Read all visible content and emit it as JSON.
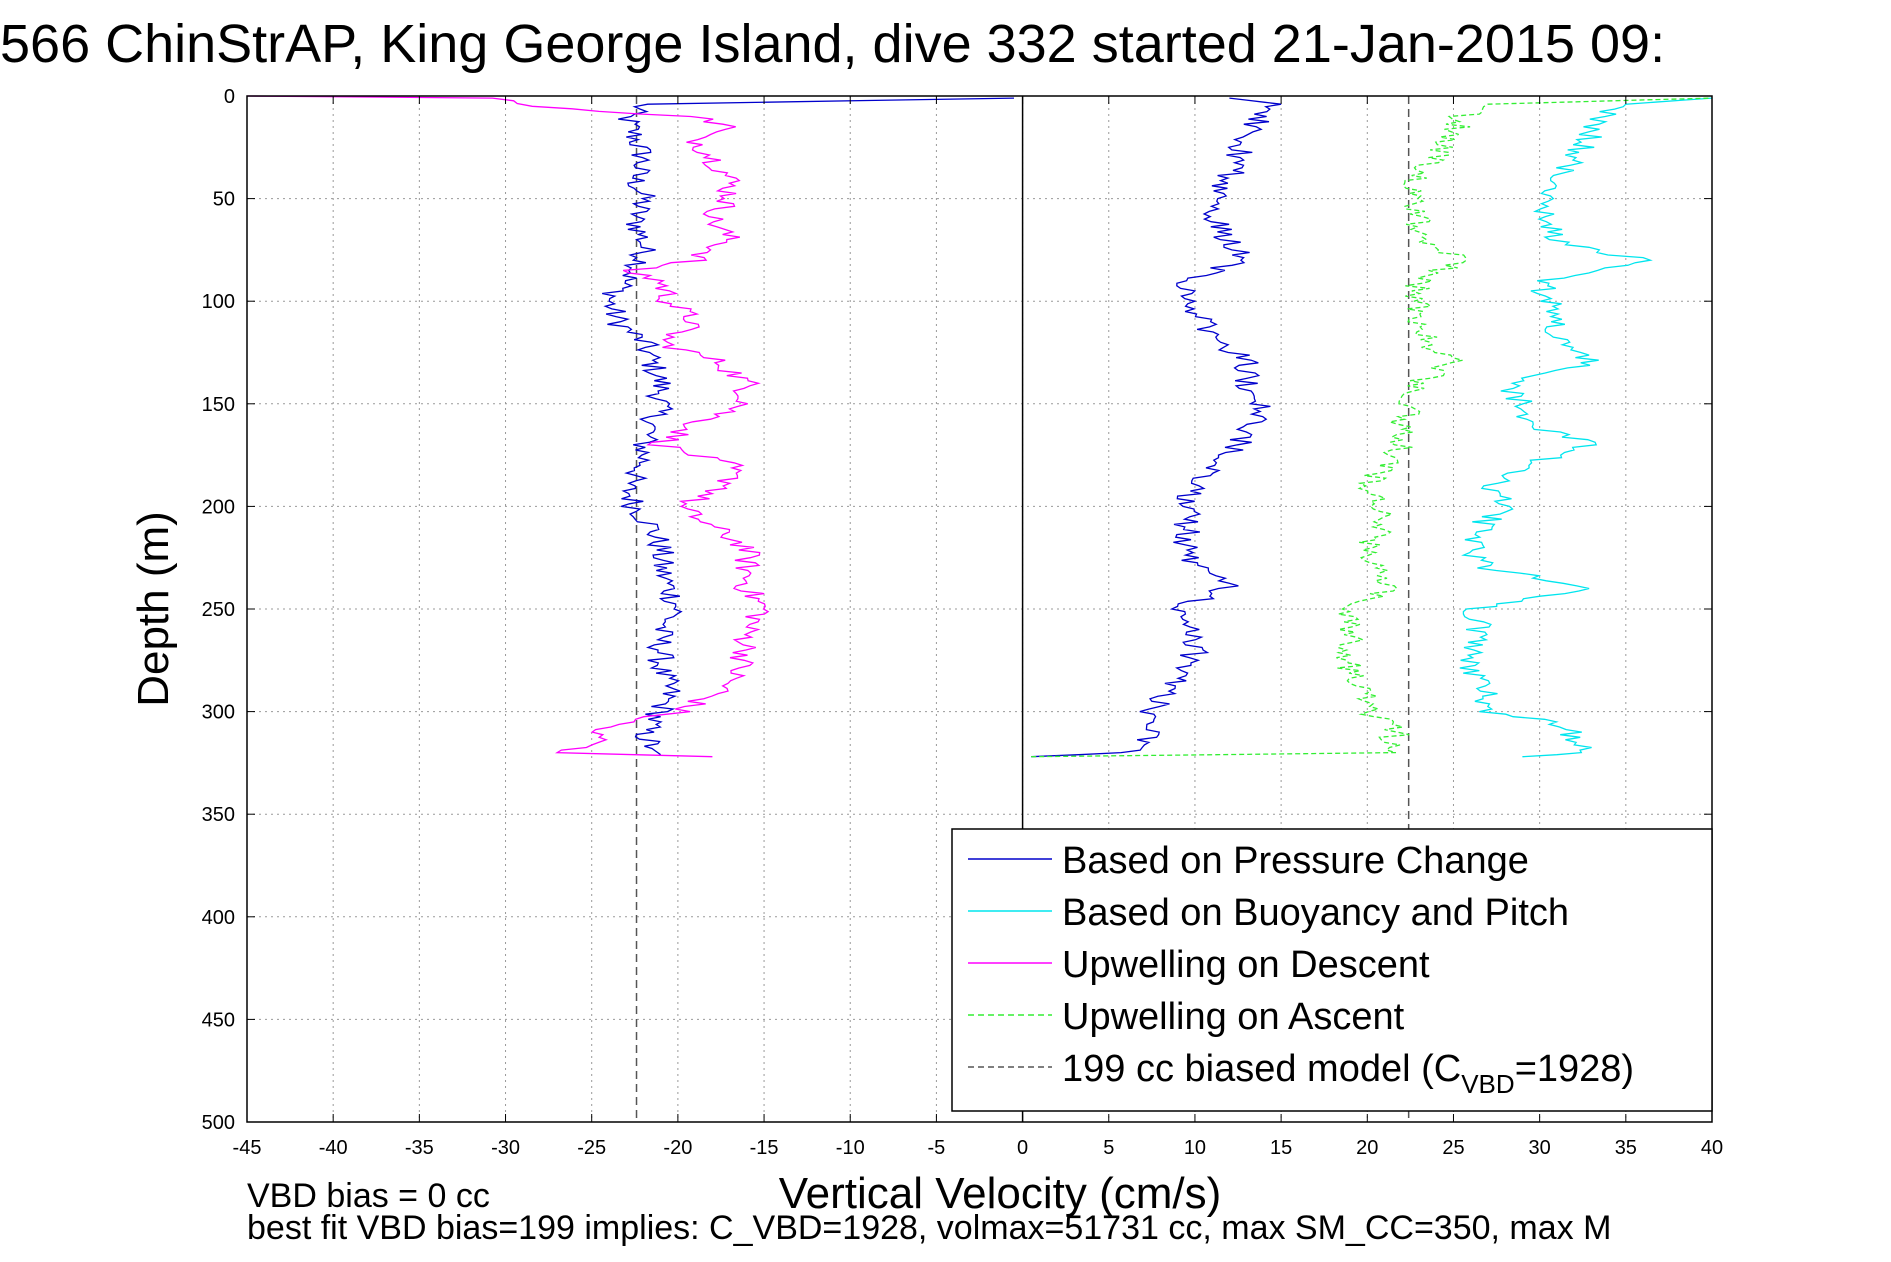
{
  "chart_data": {
    "type": "line",
    "title": "566 ChinStrAP, King George Island, dive 332 started 21-Jan-2015 09:",
    "xlabel": "Vertical Velocity (cm/s)",
    "ylabel": "Depth (m)",
    "xlim": [
      -45,
      40
    ],
    "ylim": [
      0,
      500
    ],
    "y_reversed": true,
    "grid": true,
    "x_ticks": [
      -45,
      -40,
      -35,
      -30,
      -25,
      -20,
      -15,
      -10,
      -5,
      0,
      5,
      10,
      15,
      20,
      25,
      30,
      35,
      40
    ],
    "y_ticks": [
      0,
      50,
      100,
      150,
      200,
      250,
      300,
      350,
      400,
      450,
      500
    ],
    "x_tick_labels": [
      "-45",
      "-40",
      "-35",
      "-30",
      "-25",
      "-20",
      "-15",
      "-10",
      "-5",
      "0",
      "5",
      "10",
      "15",
      "20",
      "25",
      "30",
      "35",
      "40"
    ],
    "y_tick_labels": [
      "0",
      "50",
      "100",
      "150",
      "200",
      "250",
      "300",
      "350",
      "400",
      "450",
      "500"
    ],
    "legend_position": "bottom-right",
    "reference_lines": [
      {
        "axis": "x",
        "value": -22.4,
        "color": "#555555",
        "style": "dashed"
      },
      {
        "axis": "x",
        "value": 22.4,
        "color": "#555555",
        "style": "dashed"
      },
      {
        "axis": "x",
        "value": 0,
        "color": "#000000",
        "style": "solid"
      }
    ],
    "series": [
      {
        "name": "Based on Pressure Change",
        "color": "#0000cc",
        "style": "solid",
        "descent": {
          "depth": [
            1,
            4,
            10,
            20,
            30,
            40,
            50,
            60,
            70,
            80,
            90,
            100,
            110,
            120,
            130,
            140,
            150,
            160,
            170,
            180,
            190,
            200,
            210,
            220,
            230,
            240,
            250,
            260,
            270,
            280,
            290,
            300,
            310,
            318,
            321
          ],
          "velocity": [
            -0.5,
            -22,
            -23,
            -22.5,
            -22,
            -22.5,
            -22,
            -22.5,
            -22,
            -22,
            -23,
            -24,
            -23.5,
            -22,
            -21.5,
            -21,
            -21,
            -21.5,
            -22,
            -22,
            -23,
            -22.5,
            -21.5,
            -21,
            -21,
            -20.5,
            -20,
            -21,
            -21,
            -21,
            -20.5,
            -21,
            -22,
            -21.5,
            -21
          ]
        },
        "ascent": {
          "depth": [
            322,
            320,
            315,
            310,
            305,
            300,
            290,
            280,
            270,
            260,
            250,
            240,
            230,
            220,
            210,
            200,
            190,
            180,
            170,
            160,
            150,
            140,
            130,
            120,
            110,
            100,
            90,
            80,
            70,
            60,
            50,
            40,
            30,
            20,
            10,
            4,
            1
          ],
          "velocity": [
            0.5,
            6,
            7,
            7.5,
            8,
            7.5,
            8.5,
            9.5,
            10,
            9.5,
            9,
            12,
            10,
            9.5,
            9.5,
            9.5,
            10,
            11.5,
            12.5,
            13.5,
            14,
            13,
            13,
            11.5,
            10.5,
            9.5,
            9,
            13,
            12,
            11,
            11,
            12,
            12.5,
            13,
            14,
            15,
            12
          ]
        }
      },
      {
        "name": "Based on Buoyancy and Pitch",
        "color": "#00e5ee",
        "style": "solid",
        "ascent": {
          "depth": [
            322,
            320,
            315,
            310,
            305,
            300,
            290,
            280,
            270,
            260,
            250,
            240,
            230,
            220,
            210,
            200,
            190,
            180,
            170,
            160,
            150,
            140,
            130,
            120,
            110,
            100,
            90,
            80,
            70,
            60,
            50,
            40,
            30,
            20,
            10,
            4,
            1
          ],
          "velocity": [
            29,
            33,
            31.5,
            32,
            30.5,
            27,
            27,
            26,
            26,
            26.5,
            26,
            33,
            27,
            26,
            26.5,
            28,
            27,
            29,
            33,
            29.5,
            29,
            28,
            33,
            31,
            31,
            30.5,
            30,
            36,
            31,
            30.5,
            30.5,
            31,
            32,
            33,
            33.5,
            35,
            40
          ]
        }
      },
      {
        "name": "Upwelling on Descent",
        "color": "#ff00ff",
        "style": "solid",
        "descent": {
          "depth": [
            0,
            1,
            5,
            10,
            15,
            20,
            30,
            40,
            50,
            60,
            70,
            80,
            85,
            90,
            100,
            110,
            120,
            130,
            140,
            150,
            160,
            170,
            180,
            190,
            200,
            210,
            220,
            230,
            240,
            250,
            260,
            270,
            280,
            290,
            300,
            305,
            310,
            315,
            320,
            322
          ],
          "velocity": [
            -45,
            -30,
            -29,
            -19,
            -17,
            -19,
            -18,
            -17,
            -17,
            -18,
            -17,
            -19,
            -23,
            -21,
            -20.5,
            -19,
            -21,
            -17.5,
            -16,
            -16,
            -19,
            -21,
            -17,
            -17,
            -20,
            -18,
            -16,
            -16,
            -16,
            -15,
            -16,
            -16,
            -16.5,
            -17.5,
            -20,
            -23,
            -25,
            -24.5,
            -27,
            -18
          ]
        }
      },
      {
        "name": "Upwelling on Ascent",
        "color": "#33ee33",
        "style": "dashed",
        "ascent": {
          "depth": [
            322,
            320,
            315,
            310,
            305,
            300,
            290,
            280,
            270,
            260,
            250,
            240,
            230,
            220,
            210,
            200,
            190,
            180,
            170,
            160,
            150,
            140,
            130,
            120,
            110,
            100,
            90,
            80,
            70,
            60,
            50,
            40,
            30,
            20,
            10,
            4,
            1
          ],
          "velocity": [
            0.5,
            22,
            21,
            22,
            21,
            20,
            20,
            19,
            19,
            19,
            19,
            21,
            20.5,
            20,
            21,
            20.5,
            20,
            21,
            22,
            22,
            22.5,
            23,
            25,
            23.5,
            23,
            23,
            23,
            25.5,
            23,
            23,
            22.5,
            23,
            24,
            25,
            25.5,
            27,
            40
          ]
        }
      },
      {
        "name": "199 cc biased model (C",
        "name_subscript": "VBD",
        "name_suffix": "=1928)",
        "color": "#555555",
        "style": "dashed"
      }
    ],
    "annotations": [
      "VBD bias = 0 cc",
      "best fit VBD bias=199 implies: C_VBD=1928, volmax=51731 cc, max SM_CC=350, max M"
    ]
  }
}
